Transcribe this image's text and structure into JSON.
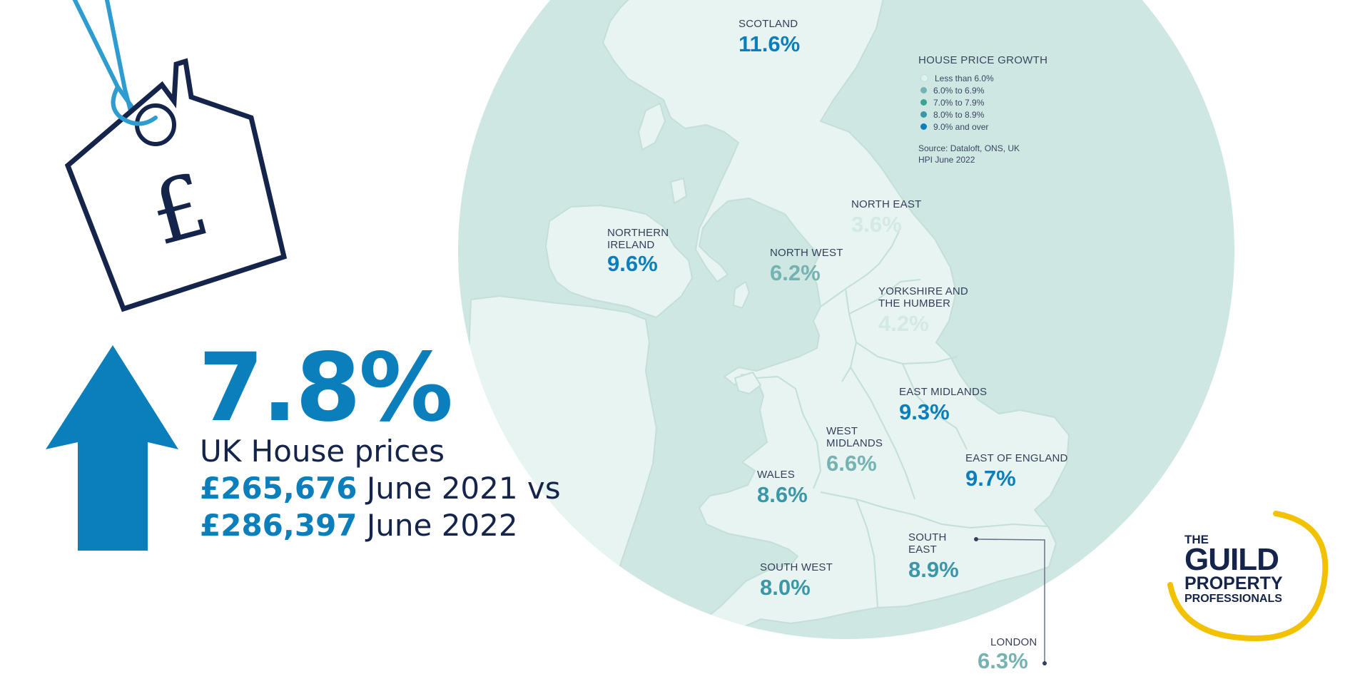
{
  "headline": {
    "value": "7.8%",
    "subtitle": "UK House prices",
    "line1_price": "£265,676",
    "line1_text": " June 2021 vs",
    "line2_price": "£286,397",
    "line2_text": " June 2022"
  },
  "regions": [
    {
      "id": "scotland",
      "name": "SCOTLAND",
      "value": "11.6%",
      "color": "#0b7ebc"
    },
    {
      "id": "northern-ireland",
      "name": "NORTHERN\nIRELAND",
      "value": "9.6%",
      "color": "#0b7ebc"
    },
    {
      "id": "north-east",
      "name": "NORTH EAST",
      "value": "3.6%",
      "color": "#d3e9e3"
    },
    {
      "id": "north-west",
      "name": "NORTH WEST",
      "value": "6.2%",
      "color": "#74b3b2"
    },
    {
      "id": "yorkshire",
      "name": "YORKSHIRE AND\nTHE HUMBER",
      "value": "4.2%",
      "color": "#d3e9e3"
    },
    {
      "id": "east-midlands",
      "name": "EAST MIDLANDS",
      "value": "9.3%",
      "color": "#0b7ebc"
    },
    {
      "id": "west-midlands",
      "name": "WEST\nMIDLANDS",
      "value": "6.6%",
      "color": "#74b3b2"
    },
    {
      "id": "east-of-england",
      "name": "EAST OF ENGLAND",
      "value": "9.7%",
      "color": "#0b7ebc"
    },
    {
      "id": "wales",
      "name": "WALES",
      "value": "8.6%",
      "color": "#3b97a8"
    },
    {
      "id": "south-east",
      "name": "SOUTH\nEAST",
      "value": "8.9%",
      "color": "#3b97a8"
    },
    {
      "id": "south-west",
      "name": "SOUTH WEST",
      "value": "8.0%",
      "color": "#3b97a8"
    },
    {
      "id": "london",
      "name": "LONDON",
      "value": "6.3%",
      "color": "#74b3b2"
    }
  ],
  "legend": {
    "title": "HOUSE PRICE GROWTH",
    "items": [
      {
        "label": "Less than 6.0%",
        "color": "#e2f1ed"
      },
      {
        "label": "6.0% to 6.9%",
        "color": "#74b3b2"
      },
      {
        "label": "7.0% to 7.9%",
        "color": "#3aa58e"
      },
      {
        "label": "8.0% to 8.9%",
        "color": "#3b97a8"
      },
      {
        "label": "9.0% and over",
        "color": "#0b7ebc"
      }
    ],
    "source": "Source: Dataloft, ONS, UK HPI June 2022"
  },
  "logo": {
    "the": "THE",
    "guild": "GUILD",
    "property": "PROPERTY",
    "professionals": "PROFESSIONALS"
  },
  "tag_icon": {
    "symbol": "£",
    "icon": "house-price-tag-icon"
  },
  "arrow_icon": {
    "icon": "up-arrow-icon",
    "color": "#0b7ebc"
  },
  "colors": {
    "map_circle": "#cfe7e2",
    "land": "#e8f4f1",
    "navy": "#15244a",
    "blue": "#0b7ebc",
    "gold": "#f2c200"
  }
}
